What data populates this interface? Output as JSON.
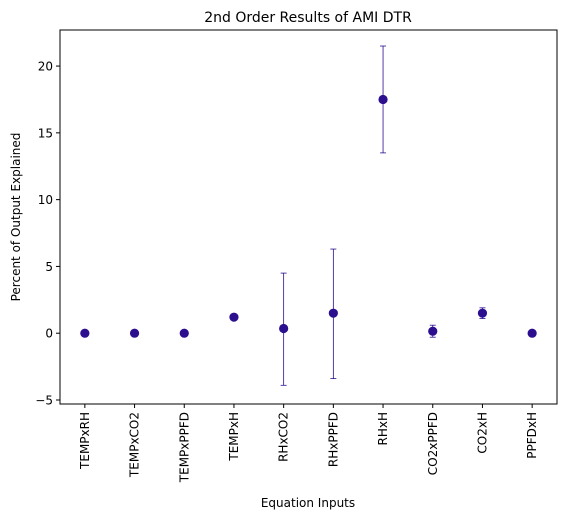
{
  "chart_data": {
    "type": "scatter",
    "title": "2nd Order Results of AMI DTR",
    "xlabel": "Equation Inputs",
    "ylabel": "Percent of Output Explained",
    "categories": [
      "TEMPxRH",
      "TEMPxCO2",
      "TEMPxPPFD",
      "TEMPxH",
      "RHxCO2",
      "RHxPPFD",
      "RHxH",
      "CO2xPPFD",
      "CO2xH",
      "PPFDxH"
    ],
    "values": [
      0.0,
      0.0,
      0.0,
      1.2,
      0.35,
      1.5,
      17.5,
      0.15,
      1.5,
      0.0
    ],
    "error_low": [
      0.0,
      0.0,
      0.0,
      1.1,
      -3.9,
      -3.4,
      13.5,
      -0.3,
      1.1,
      0.0
    ],
    "error_high": [
      0.0,
      0.0,
      0.0,
      1.3,
      4.5,
      6.3,
      21.5,
      0.6,
      1.9,
      0.0
    ],
    "ylim": [
      -5.3,
      22.7
    ],
    "yticks": [
      -5,
      0,
      5,
      10,
      15,
      20
    ],
    "grid": false,
    "marker_color": "#2c0f8f"
  }
}
